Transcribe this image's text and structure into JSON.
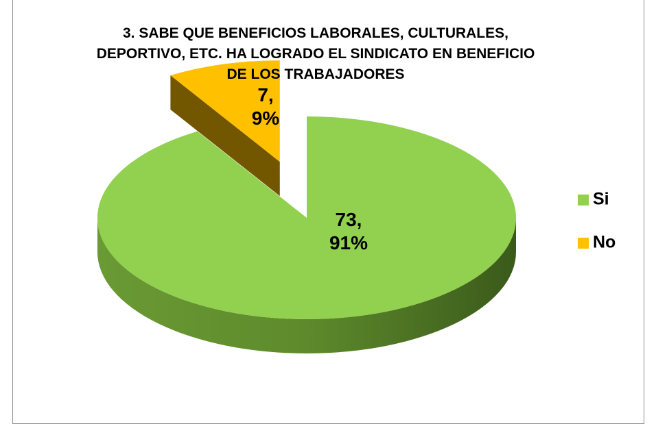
{
  "chart_data": {
    "type": "pie3d",
    "title": "3. SABE QUE BENEFICIOS LABORALES, CULTURALES, DEPORTIVO, ETC. HA LOGRADO  EL SINDICATO EN BENEFICIO DE LOS TRABAJADORES",
    "categories": [
      "Si",
      "No"
    ],
    "values": [
      73,
      7
    ],
    "value_labels": [
      "73,\n91%",
      "7,\n9%"
    ],
    "colors": [
      "#92d050",
      "#ffc000"
    ],
    "exploded": [
      false,
      true
    ],
    "legend": "right"
  }
}
